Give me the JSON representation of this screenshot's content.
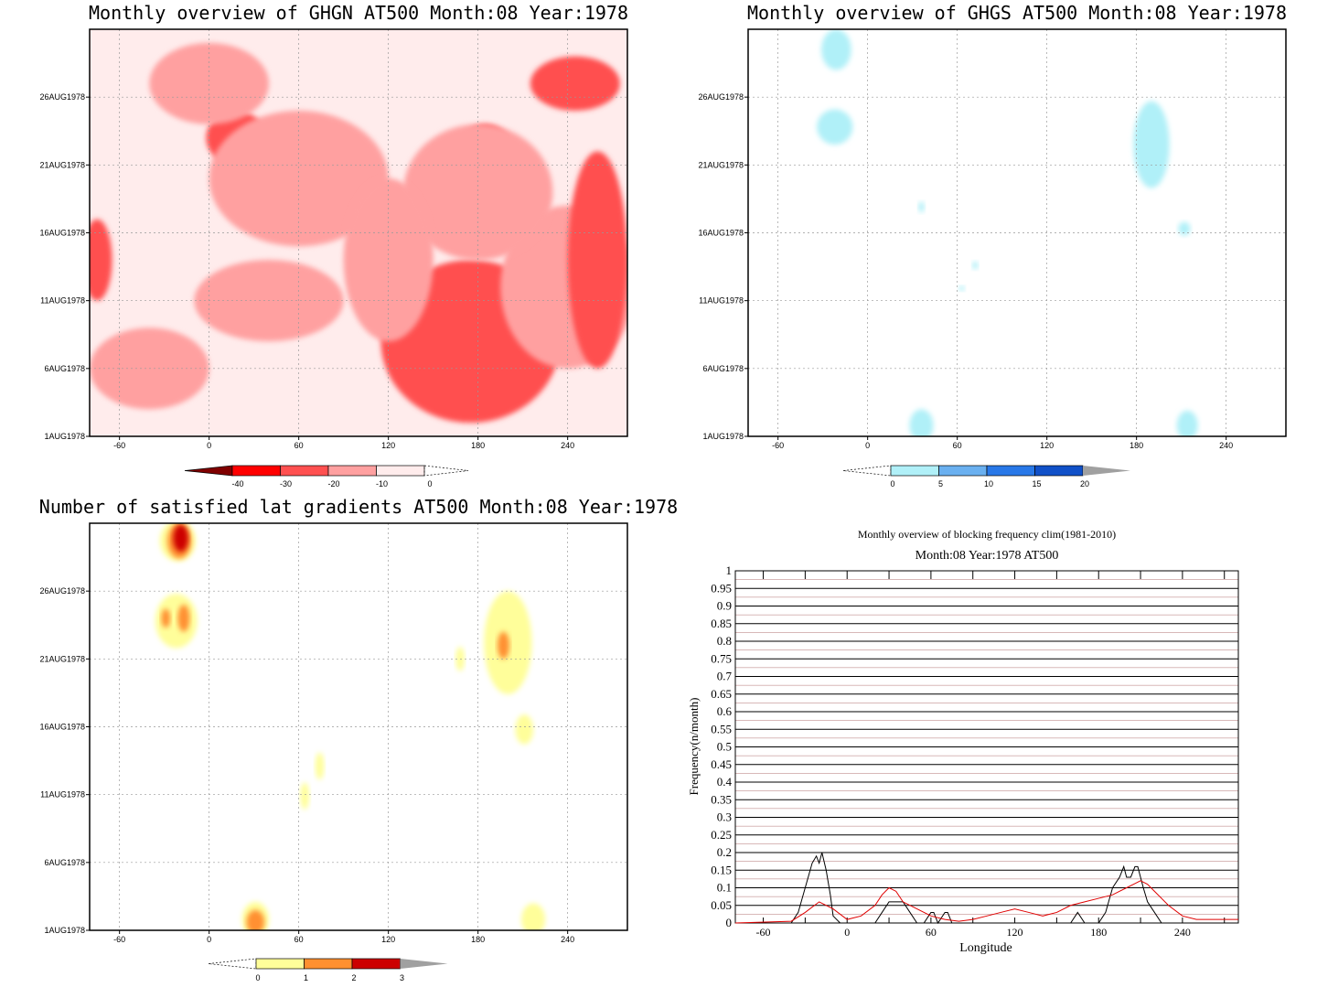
{
  "colors": {
    "ghgn_fill": [
      "#ffecec",
      "#ffa0a0",
      "#ff5050",
      "#ff0000",
      "#800000"
    ],
    "ghgs_fill": [
      "#b0f0f8",
      "#6ab0f0",
      "#2878e8",
      "#1050c8",
      "#a0a0a0"
    ],
    "grad_fill": [
      "#fffe9a",
      "#ff9030",
      "#cc0000",
      "#a0a0a0"
    ],
    "line_black": "#000000",
    "line_red": "#e00000"
  },
  "chart_data": [
    {
      "id": "ghgn",
      "type": "heatmap",
      "title": "Monthly overview of GHGN AT500 Month:08 Year:1978",
      "x_ticks": [
        "-60",
        "0",
        "60",
        "120",
        "180",
        "240"
      ],
      "y_ticks": [
        "1AUG1978",
        "6AUG1978",
        "11AUG1978",
        "16AUG1978",
        "21AUG1978",
        "26AUG1978"
      ],
      "xlim": [
        -80,
        280
      ],
      "ylim": [
        1,
        31
      ],
      "colorbar": {
        "labels": [
          "-40",
          "-30",
          "-20",
          "-10",
          "0"
        ],
        "thresholds": [
          -40,
          -30,
          -20,
          -10,
          0
        ]
      },
      "blobs": [
        {
          "level": 2,
          "x": 175,
          "y": 8,
          "rx": 60,
          "ry": 6
        },
        {
          "level": 1,
          "x": 240,
          "y": 12,
          "rx": 45,
          "ry": 6
        },
        {
          "level": 2,
          "x": 260,
          "y": 14,
          "rx": 20,
          "ry": 8
        },
        {
          "level": 2,
          "x": 18,
          "y": 23,
          "rx": 20,
          "ry": 2
        },
        {
          "level": 2,
          "x": 185,
          "y": 22,
          "rx": 18,
          "ry": 2
        },
        {
          "level": 2,
          "x": 245,
          "y": 27,
          "rx": 30,
          "ry": 2
        },
        {
          "level": 2,
          "x": -75,
          "y": 14,
          "rx": 10,
          "ry": 3
        },
        {
          "level": 1,
          "x": 60,
          "y": 20,
          "rx": 60,
          "ry": 5
        },
        {
          "level": 1,
          "x": 180,
          "y": 19,
          "rx": 50,
          "ry": 5
        },
        {
          "level": 1,
          "x": 40,
          "y": 11,
          "rx": 50,
          "ry": 3
        },
        {
          "level": 1,
          "x": 0,
          "y": 27,
          "rx": 40,
          "ry": 3
        },
        {
          "level": 1,
          "x": 120,
          "y": 14,
          "rx": 30,
          "ry": 6
        },
        {
          "level": 1,
          "x": -40,
          "y": 6,
          "rx": 40,
          "ry": 3
        }
      ]
    },
    {
      "id": "ghgs",
      "type": "heatmap",
      "title": "Monthly overview of GHGS AT500 Month:08 Year:1978",
      "x_ticks": [
        "-60",
        "0",
        "60",
        "120",
        "180",
        "240"
      ],
      "y_ticks": [
        "1AUG1978",
        "6AUG1978",
        "11AUG1978",
        "16AUG1978",
        "21AUG1978",
        "26AUG1978"
      ],
      "xlim": [
        -80,
        280
      ],
      "ylim": [
        1,
        31
      ],
      "colorbar": {
        "labels": [
          "0",
          "5",
          "10",
          "15",
          "20"
        ],
        "thresholds": [
          0,
          5,
          10,
          15,
          20
        ]
      },
      "blobs": [
        {
          "level": 0,
          "x": -21,
          "y": 29.5,
          "rx": 10,
          "ry": 1.5
        },
        {
          "level": 0,
          "x": -22,
          "y": 23.8,
          "rx": 12,
          "ry": 1.3
        },
        {
          "level": 0,
          "x": 190,
          "y": 22.5,
          "rx": 12,
          "ry": 3.2
        },
        {
          "level": 0,
          "x": 36,
          "y": 1.8,
          "rx": 8,
          "ry": 1.2
        },
        {
          "level": 0,
          "x": 214,
          "y": 1.8,
          "rx": 7,
          "ry": 1.1
        },
        {
          "level": 0,
          "x": 212,
          "y": 16.3,
          "rx": 4,
          "ry": 0.5
        },
        {
          "level": 0,
          "x": 36,
          "y": 17.9,
          "rx": 2,
          "ry": 0.4
        },
        {
          "level": 0,
          "x": 72,
          "y": 13.6,
          "rx": 2,
          "ry": 0.3
        },
        {
          "level": 0,
          "x": 63,
          "y": 11.9,
          "rx": 2,
          "ry": 0.2
        }
      ]
    },
    {
      "id": "gradients",
      "type": "heatmap",
      "title": "Number of satisfied lat gradients AT500 Month:08 Year:1978",
      "x_ticks": [
        "-60",
        "0",
        "60",
        "120",
        "180",
        "240"
      ],
      "y_ticks": [
        "1AUG1978",
        "6AUG1978",
        "11AUG1978",
        "16AUG1978",
        "21AUG1978",
        "26AUG1978"
      ],
      "xlim": [
        -80,
        280
      ],
      "ylim": [
        1,
        31
      ],
      "colorbar": {
        "labels": [
          "0",
          "1",
          "2",
          "3"
        ],
        "thresholds": [
          0,
          1,
          2,
          3
        ]
      },
      "blobs": [
        {
          "level": 0,
          "x": -21,
          "y": 29.7,
          "rx": 12,
          "ry": 1.5
        },
        {
          "level": 1,
          "x": -20,
          "y": 29.7,
          "rx": 8,
          "ry": 1.3
        },
        {
          "level": 2,
          "x": -19,
          "y": 29.9,
          "rx": 5,
          "ry": 1.0
        },
        {
          "level": 0,
          "x": -22,
          "y": 23.8,
          "rx": 14,
          "ry": 2.0
        },
        {
          "level": 1,
          "x": -29,
          "y": 24.0,
          "rx": 3,
          "ry": 0.7
        },
        {
          "level": 1,
          "x": -17,
          "y": 24.0,
          "rx": 4,
          "ry": 1.0
        },
        {
          "level": 0,
          "x": 200,
          "y": 22.2,
          "rx": 16,
          "ry": 3.8
        },
        {
          "level": 1,
          "x": 197,
          "y": 22.0,
          "rx": 4,
          "ry": 1.0
        },
        {
          "level": 0,
          "x": 168,
          "y": 21.0,
          "rx": 3,
          "ry": 0.9
        },
        {
          "level": 0,
          "x": 211,
          "y": 15.8,
          "rx": 6,
          "ry": 1.1
        },
        {
          "level": 0,
          "x": 74,
          "y": 13.1,
          "rx": 3,
          "ry": 1.0
        },
        {
          "level": 0,
          "x": 64,
          "y": 10.9,
          "rx": 3,
          "ry": 1.0
        },
        {
          "level": 0,
          "x": 31,
          "y": 1.8,
          "rx": 9,
          "ry": 1.3
        },
        {
          "level": 1,
          "x": 31,
          "y": 1.6,
          "rx": 6,
          "ry": 0.9
        },
        {
          "level": 0,
          "x": 217,
          "y": 1.8,
          "rx": 8,
          "ry": 1.2
        }
      ]
    },
    {
      "id": "frequency",
      "type": "line",
      "title": "Monthly overview of blocking frequency clim(1981-2010)",
      "subtitle": "Month:08 Year:1978  AT500",
      "xlabel": "Longitude",
      "ylabel": "Frequency(n/month)",
      "x_ticks": [
        "-60",
        "0",
        "60",
        "120",
        "180",
        "240"
      ],
      "y_ticks": [
        "0",
        "0.05",
        "0.1",
        "0.15",
        "0.2",
        "0.25",
        "0.3",
        "0.35",
        "0.4",
        "0.45",
        "0.5",
        "0.55",
        "0.6",
        "0.65",
        "0.7",
        "0.75",
        "0.8",
        "0.85",
        "0.9",
        "0.95",
        "1"
      ],
      "xlim": [
        -80,
        280
      ],
      "ylim": [
        0,
        1
      ],
      "grid": true,
      "series": [
        {
          "color": "black",
          "x": [
            -80,
            -40,
            -35,
            -30,
            -25,
            -22,
            -20,
            -18,
            -15,
            -12,
            -10,
            -5,
            0,
            20,
            25,
            30,
            35,
            40,
            45,
            50,
            55,
            60,
            62,
            65,
            70,
            72,
            75,
            80,
            100,
            160,
            165,
            170,
            175,
            180,
            185,
            190,
            195,
            198,
            200,
            203,
            206,
            208,
            210,
            212,
            215,
            220,
            225,
            280
          ],
          "y": [
            0,
            0,
            0.03,
            0.1,
            0.17,
            0.19,
            0.17,
            0.2,
            0.15,
            0.08,
            0.02,
            0,
            0,
            0,
            0.03,
            0.06,
            0.06,
            0.06,
            0.03,
            0,
            0,
            0.03,
            0.03,
            0,
            0.03,
            0.03,
            0,
            0,
            0,
            0,
            0.03,
            0,
            0,
            0,
            0.03,
            0.1,
            0.13,
            0.16,
            0.13,
            0.13,
            0.16,
            0.16,
            0.13,
            0.1,
            0.06,
            0.03,
            0,
            0
          ]
        },
        {
          "color": "red",
          "x": [
            -80,
            -40,
            -30,
            -20,
            -10,
            0,
            10,
            20,
            25,
            30,
            35,
            40,
            50,
            60,
            70,
            80,
            90,
            100,
            110,
            120,
            130,
            140,
            150,
            160,
            170,
            180,
            190,
            195,
            200,
            205,
            210,
            215,
            220,
            230,
            240,
            250,
            260,
            280
          ],
          "y": [
            0,
            0.005,
            0.03,
            0.06,
            0.04,
            0.01,
            0.02,
            0.05,
            0.08,
            0.1,
            0.09,
            0.06,
            0.04,
            0.02,
            0.01,
            0.005,
            0.01,
            0.02,
            0.03,
            0.04,
            0.03,
            0.02,
            0.03,
            0.05,
            0.06,
            0.07,
            0.08,
            0.09,
            0.1,
            0.11,
            0.12,
            0.11,
            0.09,
            0.05,
            0.02,
            0.01,
            0.01,
            0.01
          ]
        }
      ]
    }
  ]
}
